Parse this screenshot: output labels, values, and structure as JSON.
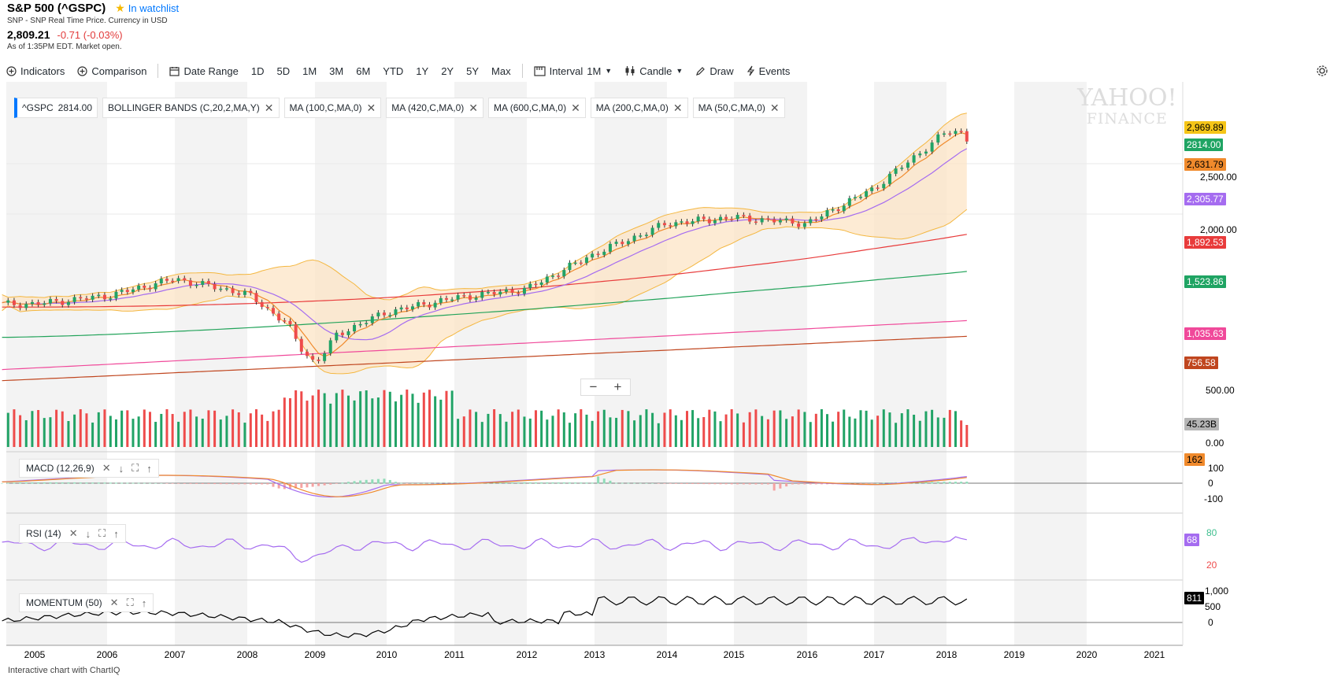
{
  "quote": {
    "title": "S&P 500 (^GSPC)",
    "watchlist_label": "In watchlist",
    "subtitle": "SNP - SNP Real Time Price. Currency in USD",
    "price": "2,809.21",
    "change": "-0.71 (-0.03%)",
    "as_of": "As of 1:35PM EDT. Market open."
  },
  "toolbar": {
    "indicators": "Indicators",
    "comparison": "Comparison",
    "date_range": "Date Range",
    "ranges": [
      "1D",
      "5D",
      "1M",
      "3M",
      "6M",
      "YTD",
      "1Y",
      "2Y",
      "5Y",
      "Max"
    ],
    "interval_label": "Interval",
    "interval_value": "1M",
    "chart_type": "Candle",
    "draw": "Draw",
    "events": "Events"
  },
  "chips": [
    {
      "label": "^GSPC",
      "value": "2814.00"
    },
    {
      "label": "BOLLINGER BANDS (C,20,2,MA,Y)"
    },
    {
      "label": "MA (100,C,MA,0)"
    },
    {
      "label": "MA (420,C,MA,0)"
    },
    {
      "label": "MA (600,C,MA,0)"
    },
    {
      "label": "MA (200,C,MA,0)"
    },
    {
      "label": "MA (50,C,MA,0)"
    }
  ],
  "watermark": {
    "brand": "YAHOO!",
    "sub": "FINANCE"
  },
  "colors": {
    "up": "#21a366",
    "down": "#ee4b4b",
    "bb_upper": "#f4b740",
    "bb_fill": "#fce4c6",
    "ma50": "#f08a2c",
    "ma100": "#a56cf0",
    "ma200": "#e83b3b",
    "ma420": "#22a35a",
    "ma600": "#f0499a",
    "ma_extra": "#c0461f"
  },
  "price_tags": [
    {
      "value": "2,969.89",
      "color": "#f5c518",
      "text": "#000"
    },
    {
      "value": "2814.00",
      "color": "#1fa463",
      "text": "#fff"
    },
    {
      "value": "2,631.79",
      "color": "#f08a2c",
      "text": "#000"
    },
    {
      "value": "2,305.77",
      "color": "#a56cf0",
      "text": "#fff"
    },
    {
      "value": "1,892.53",
      "color": "#e83b3b",
      "text": "#fff"
    },
    {
      "value": "1,523.86",
      "color": "#1fa463",
      "text": "#fff"
    },
    {
      "value": "1,035.63",
      "color": "#f0499a",
      "text": "#fff"
    },
    {
      "value": "756.58",
      "color": "#c0461f",
      "text": "#fff"
    },
    {
      "value": "45.23B",
      "color": "#b5b5b5",
      "text": "#000"
    }
  ],
  "y_axis": {
    "labels": [
      "2,500.00",
      "2,000.00",
      "500.00",
      "0.00"
    ]
  },
  "macd": {
    "label": "MACD (12,26,9)",
    "tag": "162",
    "axis": [
      "100",
      "0",
      "-100"
    ]
  },
  "rsi": {
    "label": "RSI (14)",
    "tag": "68",
    "axis": [
      "80",
      "20"
    ]
  },
  "momentum": {
    "label": "MOMENTUM (50)",
    "tag": "811",
    "axis": [
      "1,000",
      "500",
      "0"
    ]
  },
  "x_axis": [
    "2005",
    "2006",
    "2007",
    "2008",
    "2009",
    "2010",
    "2011",
    "2012",
    "2013",
    "2014",
    "2015",
    "2016",
    "2017",
    "2018",
    "2019",
    "2020",
    "2021"
  ],
  "footer": "Interactive chart with ChartIQ",
  "chart_data": {
    "type": "candlestick",
    "title": "S&P 500 (^GSPC) monthly",
    "interval": "1M",
    "x": [
      "2005",
      "2006",
      "2007",
      "2008",
      "2009",
      "2010",
      "2011",
      "2012",
      "2013",
      "2014",
      "2015",
      "2016",
      "2017",
      "2018"
    ],
    "close_approx": [
      1200,
      1280,
      1450,
      1300,
      800,
      1120,
      1260,
      1350,
      1700,
      2000,
      2060,
      2000,
      2350,
      2910
    ],
    "series": [
      {
        "name": "MA (50,C,MA,0)",
        "last": 2631.79
      },
      {
        "name": "MA (100,C,MA,0)",
        "last": 2305.77
      },
      {
        "name": "MA (200,C,MA,0)",
        "last": 1892.53
      },
      {
        "name": "MA (420,C,MA,0)",
        "last": 1523.86
      },
      {
        "name": "MA (600,C,MA,0)",
        "last": 1035.63
      },
      {
        "name": "Bollinger upper",
        "last": 2969.89
      }
    ],
    "last_price": 2814.0,
    "volume_last": "45.23B",
    "macd_last": 162,
    "rsi_last": 68,
    "momentum_last": 811
  }
}
